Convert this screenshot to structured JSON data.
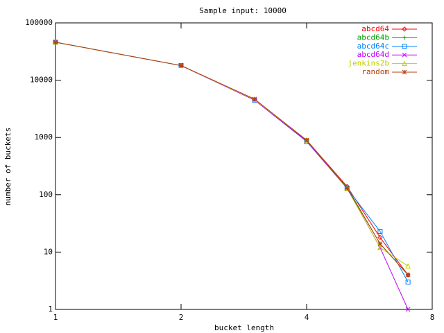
{
  "chart_data": {
    "type": "line",
    "title": "Sample input: 10000",
    "x_label": "bucket length",
    "y_label": "number of buckets",
    "x": [
      1,
      2,
      3,
      4,
      5,
      6,
      7
    ],
    "xlim": [
      1,
      8
    ],
    "xticks": [
      1,
      2,
      4,
      8
    ],
    "xscale": "log",
    "ylim": [
      1,
      100000
    ],
    "yticks": [
      1,
      10,
      100,
      1000,
      10000,
      100000
    ],
    "yscale": "log",
    "legend": "top-right",
    "series": [
      {
        "name": "abcd64",
        "color": "#ff0000",
        "marker": "diamond",
        "values": [
          46000,
          18000,
          4600,
          900,
          140,
          18,
          4
        ]
      },
      {
        "name": "abcd64b",
        "color": "#00a000",
        "marker": "plus",
        "values": [
          46000,
          18000,
          4600,
          880,
          135,
          14,
          4
        ]
      },
      {
        "name": "abcd64c",
        "color": "#0080ff",
        "marker": "square",
        "values": [
          46000,
          18000,
          4500,
          850,
          130,
          23,
          3
        ]
      },
      {
        "name": "abcd64d",
        "color": "#c000ff",
        "marker": "x",
        "values": [
          46000,
          18000,
          4500,
          860,
          130,
          12,
          1
        ]
      },
      {
        "name": "jenkins2b",
        "color": "#c0d000",
        "marker": "triangle",
        "values": [
          46000,
          18000,
          4600,
          900,
          130,
          12,
          5.7
        ]
      },
      {
        "name": "random",
        "color": "#b04010",
        "marker": "star",
        "values": [
          46000,
          18000,
          4700,
          900,
          130,
          14,
          4
        ]
      }
    ]
  }
}
